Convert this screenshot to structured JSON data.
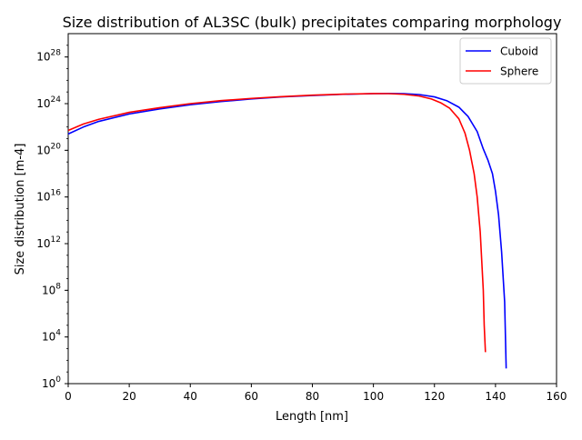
{
  "chart_data": {
    "type": "line",
    "title": "Size distribution of AL3SC (bulk) precipitates comparing morphology",
    "xlabel": "Length [nm]",
    "ylabel": "Size distribution [m-4]",
    "xlim": [
      0,
      160
    ],
    "ylim": [
      1,
      1e+30
    ],
    "yscale": "log",
    "grid": false,
    "legend_position": "upper right",
    "x_ticks": [
      0,
      20,
      40,
      60,
      80,
      100,
      120,
      140,
      160
    ],
    "y_ticks": [
      {
        "value": 1,
        "base": "10",
        "exp": "0"
      },
      {
        "value": 10000,
        "base": "10",
        "exp": "4"
      },
      {
        "value": 100000000,
        "base": "10",
        "exp": "8"
      },
      {
        "value": 1000000000000.0,
        "base": "10",
        "exp": "12"
      },
      {
        "value": 1e+16,
        "base": "10",
        "exp": "16"
      },
      {
        "value": 1e+20,
        "base": "10",
        "exp": "20"
      },
      {
        "value": 1e+24,
        "base": "10",
        "exp": "24"
      },
      {
        "value": 1e+28,
        "base": "10",
        "exp": "28"
      }
    ],
    "series": [
      {
        "name": "Cuboid",
        "color": "#0000ff",
        "points": [
          [
            0,
            2.5e+21
          ],
          [
            5,
            1e+22
          ],
          [
            10,
            3e+22
          ],
          [
            20,
            1.3e+23
          ],
          [
            30,
            3.5e+23
          ],
          [
            40,
            8e+23
          ],
          [
            50,
            1.5e+24
          ],
          [
            60,
            2.5e+24
          ],
          [
            70,
            3.8e+24
          ],
          [
            80,
            5e+24
          ],
          [
            90,
            6.3e+24
          ],
          [
            100,
            7.2e+24
          ],
          [
            105,
            7.4e+24
          ],
          [
            110,
            7.2e+24
          ],
          [
            115,
            6e+24
          ],
          [
            120,
            3.8e+24
          ],
          [
            124,
            1.8e+24
          ],
          [
            128,
            5e+23
          ],
          [
            131,
            8e+22
          ],
          [
            134,
            4e+21
          ],
          [
            136,
            1.3e+20
          ],
          [
            137.5,
            1.5e+19
          ],
          [
            139,
            1e+18
          ],
          [
            140,
            3e+16
          ],
          [
            141,
            300000000000000.0
          ],
          [
            142,
            200000000000.0
          ],
          [
            143,
            10000000.0
          ],
          [
            143.5,
            20.0
          ]
        ]
      },
      {
        "name": "Sphere",
        "color": "#ff0000",
        "points": [
          [
            0,
            5e+21
          ],
          [
            5,
            1.8e+22
          ],
          [
            10,
            4.5e+22
          ],
          [
            20,
            1.8e+23
          ],
          [
            30,
            4.5e+23
          ],
          [
            40,
            1e+24
          ],
          [
            50,
            1.8e+24
          ],
          [
            60,
            2.8e+24
          ],
          [
            70,
            4e+24
          ],
          [
            80,
            5.3e+24
          ],
          [
            90,
            6.5e+24
          ],
          [
            100,
            7.3e+24
          ],
          [
            105,
            7.2e+24
          ],
          [
            110,
            6.3e+24
          ],
          [
            115,
            4.5e+24
          ],
          [
            119,
            2.5e+24
          ],
          [
            122,
            1.2e+24
          ],
          [
            125,
            4e+23
          ],
          [
            128,
            5e+22
          ],
          [
            130,
            3e+21
          ],
          [
            131.5,
            1e+20
          ],
          [
            133,
            1e+18
          ],
          [
            134,
            1e+16
          ],
          [
            135,
            10000000000000.0
          ],
          [
            136,
            100000000.0
          ],
          [
            136.3,
            100000.0
          ],
          [
            136.7,
            500.0
          ]
        ]
      }
    ]
  }
}
